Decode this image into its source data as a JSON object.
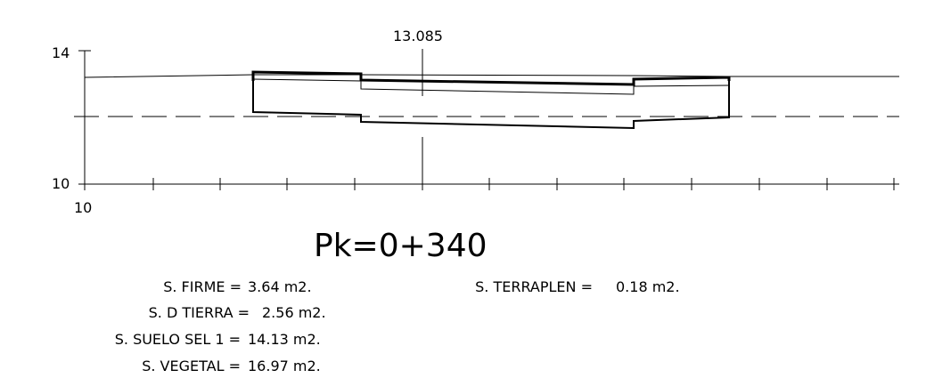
{
  "axis": {
    "y_top_label": "14",
    "y_bottom_label": "10",
    "x_start_label": "10",
    "axis_marker_value": "13.085"
  },
  "section_title": "Pk=0+340",
  "areas_left": [
    {
      "label": "S. FIRME =",
      "value": "3.64 m2."
    },
    {
      "label": "S. D TIERRA =",
      "value": "2.56 m2."
    },
    {
      "label": "S. SUELO SEL 1 =",
      "value": "14.13 m2."
    },
    {
      "label": "S. VEGETAL =",
      "value": "16.97 m2."
    }
  ],
  "areas_right": [
    {
      "label": "S. TERRAPLEN =",
      "value": "0.18 m2."
    }
  ],
  "colors": {
    "line": "#000000",
    "background": "#ffffff"
  }
}
